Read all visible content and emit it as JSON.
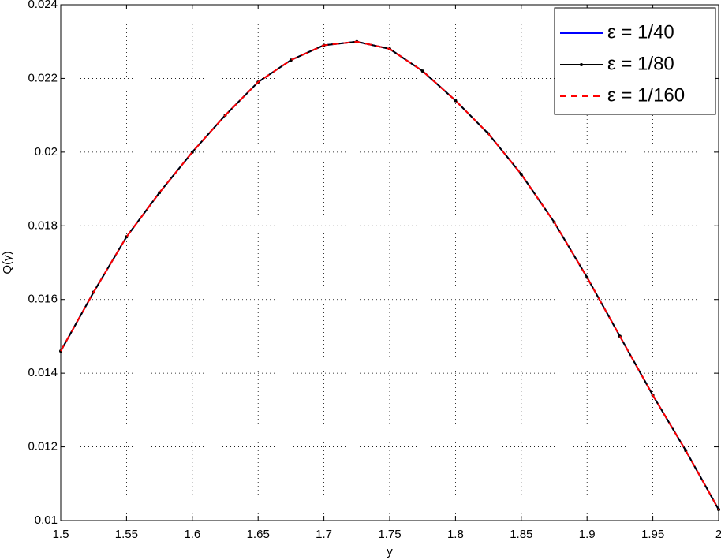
{
  "chart_data": {
    "type": "line",
    "xlabel": "y",
    "ylabel": "Q(y)",
    "x": [
      1.5,
      1.525,
      1.55,
      1.575,
      1.6,
      1.625,
      1.65,
      1.675,
      1.7,
      1.725,
      1.75,
      1.775,
      1.8,
      1.825,
      1.85,
      1.875,
      1.9,
      1.925,
      1.95,
      1.975,
      2
    ],
    "series": [
      {
        "name": "ε = 1/40",
        "color": "#0000ff",
        "linestyle": "solid",
        "marker": false,
        "values": [
          0.0146,
          0.0162,
          0.0177,
          0.0189,
          0.02,
          0.021,
          0.0219,
          0.0225,
          0.0229,
          0.023,
          0.0228,
          0.0222,
          0.0214,
          0.0205,
          0.0194,
          0.0181,
          0.0166,
          0.015,
          0.0134,
          0.0119,
          0.0103
        ]
      },
      {
        "name": "ε = 1/80",
        "color": "#000000",
        "linestyle": "solid",
        "marker": true,
        "values": [
          0.0146,
          0.0162,
          0.0177,
          0.0189,
          0.02,
          0.021,
          0.0219,
          0.0225,
          0.0229,
          0.023,
          0.0228,
          0.0222,
          0.0214,
          0.0205,
          0.0194,
          0.0181,
          0.0166,
          0.015,
          0.0134,
          0.0119,
          0.0103
        ]
      },
      {
        "name": "ε = 1/160",
        "color": "#ff0000",
        "linestyle": "dashed",
        "marker": false,
        "values": [
          0.0146,
          0.0162,
          0.0177,
          0.0189,
          0.02,
          0.021,
          0.0219,
          0.0225,
          0.0229,
          0.023,
          0.0228,
          0.0222,
          0.0214,
          0.0205,
          0.0194,
          0.0181,
          0.0166,
          0.015,
          0.0134,
          0.0119,
          0.0103
        ]
      }
    ],
    "xlim": [
      1.5,
      2
    ],
    "xticks": [
      1.5,
      1.55,
      1.6,
      1.65,
      1.7,
      1.75,
      1.8,
      1.85,
      1.9,
      1.95,
      2
    ],
    "ylim": [
      0.01,
      0.024
    ],
    "yticks": [
      0.01,
      0.012,
      0.014,
      0.016,
      0.018,
      0.02,
      0.022,
      0.024
    ],
    "grid": true,
    "legend_position": "upper-right"
  }
}
